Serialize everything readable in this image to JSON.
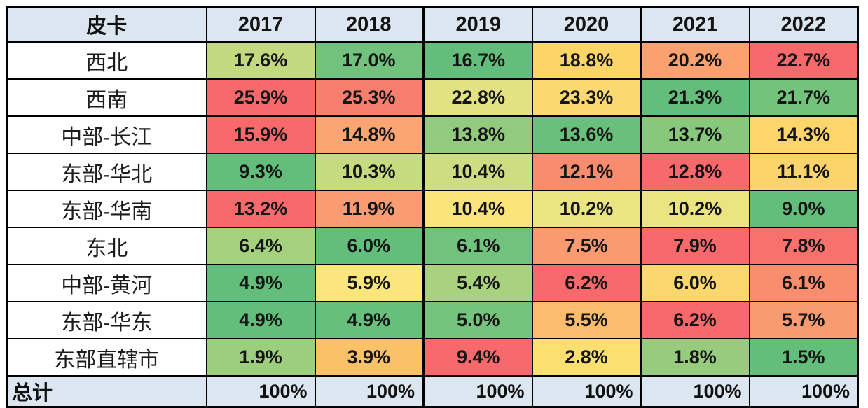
{
  "table": {
    "corner_label": "皮卡",
    "columns": [
      "2017",
      "2018",
      "2019",
      "2020",
      "2021",
      "2022"
    ],
    "rows": [
      {
        "label": "西北",
        "cells": [
          {
            "v": "17.6%",
            "bg": "#C3D97F"
          },
          {
            "v": "17.0%",
            "bg": "#70C27C"
          },
          {
            "v": "16.7%",
            "bg": "#63BE7B"
          },
          {
            "v": "18.8%",
            "bg": "#FCD567"
          },
          {
            "v": "20.2%",
            "bg": "#FAA16F"
          },
          {
            "v": "22.7%",
            "bg": "#F8696B"
          }
        ]
      },
      {
        "label": "西南",
        "cells": [
          {
            "v": "25.9%",
            "bg": "#F8696B"
          },
          {
            "v": "25.3%",
            "bg": "#F87F6D"
          },
          {
            "v": "22.8%",
            "bg": "#E2E282"
          },
          {
            "v": "23.3%",
            "bg": "#FBD96E"
          },
          {
            "v": "21.3%",
            "bg": "#63BE7B"
          },
          {
            "v": "21.7%",
            "bg": "#73C37C"
          }
        ]
      },
      {
        "label": "中部-长江",
        "cells": [
          {
            "v": "15.9%",
            "bg": "#F8696B"
          },
          {
            "v": "14.8%",
            "bg": "#FAA572"
          },
          {
            "v": "13.8%",
            "bg": "#93CB7E"
          },
          {
            "v": "13.6%",
            "bg": "#68C07B"
          },
          {
            "v": "13.7%",
            "bg": "#87C87D"
          },
          {
            "v": "14.3%",
            "bg": "#FCD56B"
          }
        ]
      },
      {
        "label": "东部-华北",
        "cells": [
          {
            "v": "9.3%",
            "bg": "#63BE7B"
          },
          {
            "v": "10.3%",
            "bg": "#C6DA80"
          },
          {
            "v": "10.4%",
            "bg": "#CEDD81"
          },
          {
            "v": "12.1%",
            "bg": "#F98B6F"
          },
          {
            "v": "12.8%",
            "bg": "#F8696B"
          },
          {
            "v": "11.1%",
            "bg": "#FCD469"
          }
        ]
      },
      {
        "label": "东部-华南",
        "cells": [
          {
            "v": "13.2%",
            "bg": "#F8696B"
          },
          {
            "v": "11.9%",
            "bg": "#FA9B71"
          },
          {
            "v": "10.4%",
            "bg": "#FBE57A"
          },
          {
            "v": "10.2%",
            "bg": "#EBE581"
          },
          {
            "v": "10.2%",
            "bg": "#EBE581"
          },
          {
            "v": "9.0%",
            "bg": "#63BE7B"
          }
        ]
      },
      {
        "label": "东北",
        "cells": [
          {
            "v": "6.4%",
            "bg": "#A5D17E"
          },
          {
            "v": "6.0%",
            "bg": "#63BE7B"
          },
          {
            "v": "6.1%",
            "bg": "#70C27C"
          },
          {
            "v": "7.5%",
            "bg": "#FA9A70"
          },
          {
            "v": "7.9%",
            "bg": "#F8696B"
          },
          {
            "v": "7.8%",
            "bg": "#F8716C"
          }
        ]
      },
      {
        "label": "中部-黄河",
        "cells": [
          {
            "v": "4.9%",
            "bg": "#63BE7B"
          },
          {
            "v": "5.9%",
            "bg": "#FAE67D"
          },
          {
            "v": "5.4%",
            "bg": "#A8D27E"
          },
          {
            "v": "6.2%",
            "bg": "#F8696B"
          },
          {
            "v": "6.0%",
            "bg": "#FBD76D"
          },
          {
            "v": "6.1%",
            "bg": "#F98E6E"
          }
        ]
      },
      {
        "label": "东部-华东",
        "cells": [
          {
            "v": "4.9%",
            "bg": "#63BE7B"
          },
          {
            "v": "4.9%",
            "bg": "#66BF7B"
          },
          {
            "v": "5.0%",
            "bg": "#75C47C"
          },
          {
            "v": "5.5%",
            "bg": "#FBBC6D"
          },
          {
            "v": "6.2%",
            "bg": "#F8696B"
          },
          {
            "v": "5.7%",
            "bg": "#F99B70"
          }
        ]
      },
      {
        "label": "东部直辖市",
        "cells": [
          {
            "v": "1.9%",
            "bg": "#9CCE7E"
          },
          {
            "v": "3.9%",
            "bg": "#FBC168"
          },
          {
            "v": "9.4%",
            "bg": "#F8696B"
          },
          {
            "v": "2.8%",
            "bg": "#FBDF71"
          },
          {
            "v": "1.8%",
            "bg": "#97CC7E"
          },
          {
            "v": "1.5%",
            "bg": "#63BE7B"
          }
        ]
      }
    ],
    "total_row": {
      "label": "总计",
      "values": [
        "100%",
        "100%",
        "100%",
        "100%",
        "100%",
        "100%"
      ]
    },
    "colors": {
      "header_bg": "#DCE6F1",
      "total_row_bg": "#DCE6F1",
      "border": "#000000",
      "scale_low_green": "#63BE7B",
      "scale_mid_yellow": "#FFEB84",
      "scale_high_red": "#F8696B"
    }
  },
  "chart_data": {
    "type": "heatmap",
    "title": "皮卡",
    "categories": [
      "2017",
      "2018",
      "2019",
      "2020",
      "2021",
      "2022"
    ],
    "rows": [
      "西北",
      "西南",
      "中部-长江",
      "东部-华北",
      "东部-华南",
      "东北",
      "中部-黄河",
      "东部-华东",
      "东部直辖市"
    ],
    "series": [
      {
        "name": "西北",
        "values": [
          17.6,
          17.0,
          16.7,
          18.8,
          20.2,
          22.7
        ]
      },
      {
        "name": "西南",
        "values": [
          25.9,
          25.3,
          22.8,
          23.3,
          21.3,
          21.7
        ]
      },
      {
        "name": "中部-长江",
        "values": [
          15.9,
          14.8,
          13.8,
          13.6,
          13.7,
          14.3
        ]
      },
      {
        "name": "东部-华北",
        "values": [
          9.3,
          10.3,
          10.4,
          12.1,
          12.8,
          11.1
        ]
      },
      {
        "name": "东部-华南",
        "values": [
          13.2,
          11.9,
          10.4,
          10.2,
          10.2,
          9.0
        ]
      },
      {
        "name": "东北",
        "values": [
          6.4,
          6.0,
          6.1,
          7.5,
          7.9,
          7.8
        ]
      },
      {
        "name": "中部-黄河",
        "values": [
          4.9,
          5.9,
          5.4,
          6.2,
          6.0,
          6.1
        ]
      },
      {
        "name": "东部-华东",
        "values": [
          4.9,
          4.9,
          5.0,
          5.5,
          6.2,
          5.7
        ]
      },
      {
        "name": "东部直辖市",
        "values": [
          1.9,
          3.9,
          9.4,
          2.8,
          1.8,
          1.5
        ]
      }
    ],
    "total_row": {
      "name": "总计",
      "values": [
        100,
        100,
        100,
        100,
        100,
        100
      ]
    },
    "unit": "%",
    "color_scale": {
      "min": "#63BE7B",
      "mid": "#FFEB84",
      "max": "#F8696B",
      "direction": "per-row, green=min, red=max"
    }
  }
}
